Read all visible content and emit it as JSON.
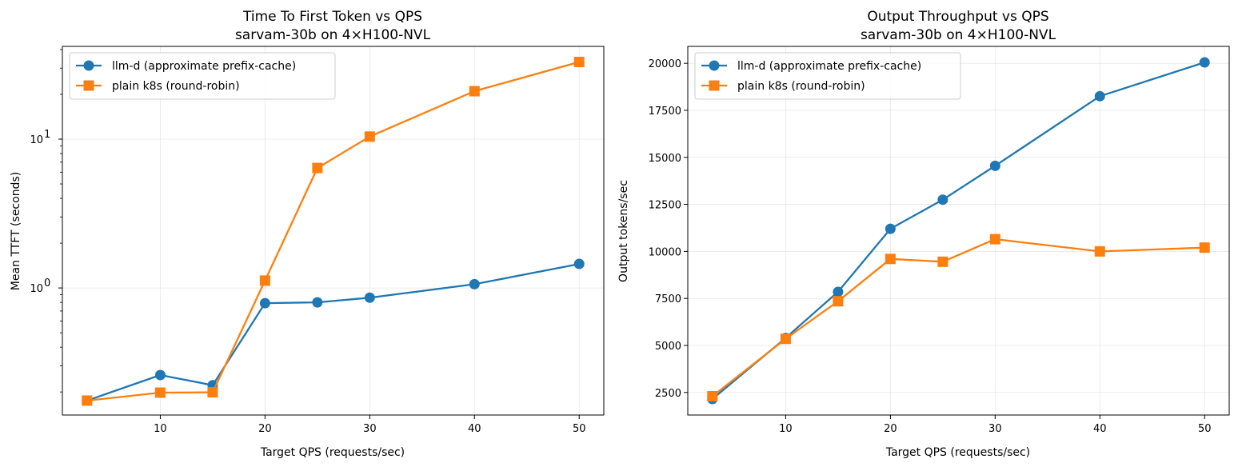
{
  "chart_data": [
    {
      "type": "line",
      "title": "Time To First Token vs QPS",
      "subtitle": "sarvam-30b on 4×H100-NVL",
      "xlabel": "Target QPS (requests/sec)",
      "ylabel": "Mean TTFT (seconds)",
      "yscale": "log",
      "xlim": [
        0.65,
        52.35
      ],
      "ylim": [
        0.14,
        42
      ],
      "xticks": [
        10,
        20,
        30,
        40,
        50
      ],
      "yticks": [
        {
          "value": 1,
          "base": "10",
          "exp": "0"
        },
        {
          "value": 10,
          "base": "10",
          "exp": "1"
        }
      ],
      "grid": true,
      "legend_position": "upper-left",
      "x": [
        3,
        10,
        15,
        20,
        25,
        30,
        40,
        50
      ],
      "series": [
        {
          "name": "llm-d (approximate prefix-cache)",
          "color": "#1f77b4",
          "marker": "circle",
          "values": [
            0.175,
            0.26,
            0.222,
            0.79,
            0.8,
            0.86,
            1.06,
            1.45
          ]
        },
        {
          "name": "plain k8s (round-robin)",
          "color": "#ff7f0e",
          "marker": "square",
          "values": [
            0.175,
            0.198,
            0.199,
            1.12,
            6.4,
            10.4,
            21.0,
            33.0
          ]
        }
      ]
    },
    {
      "type": "line",
      "title": "Output Throughput vs QPS",
      "subtitle": "sarvam-30b on 4×H100-NVL",
      "xlabel": "Target QPS (requests/sec)",
      "ylabel": "Output tokens/sec",
      "yscale": "linear",
      "xlim": [
        0.65,
        52.35
      ],
      "ylim": [
        1300,
        20900
      ],
      "xticks": [
        10,
        20,
        30,
        40,
        50
      ],
      "yticks": [
        {
          "value": 2500,
          "label": "2500"
        },
        {
          "value": 5000,
          "label": "5000"
        },
        {
          "value": 7500,
          "label": "7500"
        },
        {
          "value": 10000,
          "label": "10000"
        },
        {
          "value": 12500,
          "label": "12500"
        },
        {
          "value": 15000,
          "label": "15000"
        },
        {
          "value": 17500,
          "label": "17500"
        },
        {
          "value": 20000,
          "label": "20000"
        }
      ],
      "grid": true,
      "legend_position": "upper-left",
      "x": [
        3,
        10,
        15,
        20,
        25,
        30,
        40,
        50
      ],
      "series": [
        {
          "name": "llm-d (approximate prefix-cache)",
          "color": "#1f77b4",
          "marker": "circle",
          "values": [
            2150,
            5400,
            7850,
            11200,
            12750,
            14550,
            18250,
            20050
          ]
        },
        {
          "name": "plain k8s (round-robin)",
          "color": "#ff7f0e",
          "marker": "square",
          "values": [
            2300,
            5350,
            7350,
            9600,
            9450,
            10650,
            10000,
            10200
          ]
        }
      ]
    }
  ]
}
